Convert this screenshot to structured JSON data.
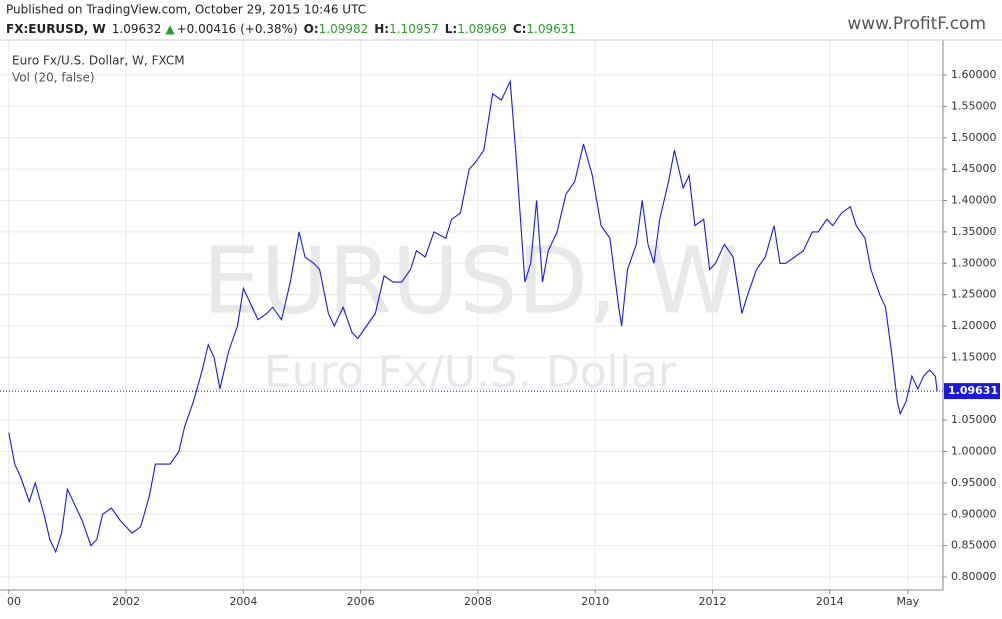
{
  "header": {
    "published": "Published on TradingView.com, October 29, 2015 10:46 UTC",
    "symbol": "FX:EURUSD, W",
    "price": "1.09632",
    "arrow": "▲",
    "change": "+0.00416 (+0.38%)",
    "open_label": "O:",
    "open": "1.09982",
    "high_label": "H:",
    "high": "1.10957",
    "low_label": "L:",
    "low": "1.08969",
    "close_label": "C:",
    "close": "1.09631",
    "logo": "www.ProfitF.com"
  },
  "legend": {
    "study": "Vol (20, false)"
  },
  "watermark": {
    "symbol": "EURUSD, W",
    "description": "Euro Fx/U.S. Dollar"
  },
  "chart_data": {
    "type": "line",
    "series": [
      {
        "name": "Euro Fx/U.S. Dollar, W, FXCM",
        "color": "#1a1ad8",
        "x": [
          2000.0,
          2000.1,
          2000.2,
          2000.35,
          2000.45,
          2000.6,
          2000.7,
          2000.8,
          2000.9,
          2001.0,
          2001.1,
          2001.25,
          2001.4,
          2001.5,
          2001.6,
          2001.75,
          2001.9,
          2002.0,
          2002.1,
          2002.25,
          2002.4,
          2002.5,
          2002.6,
          2002.75,
          2002.9,
          2003.0,
          2003.15,
          2003.3,
          2003.4,
          2003.5,
          2003.6,
          2003.75,
          2003.9,
          2004.0,
          2004.1,
          2004.25,
          2004.4,
          2004.5,
          2004.65,
          2004.8,
          2004.95,
          2005.05,
          2005.2,
          2005.3,
          2005.45,
          2005.55,
          2005.7,
          2005.85,
          2005.95,
          2006.1,
          2006.25,
          2006.4,
          2006.55,
          2006.7,
          2006.85,
          2006.95,
          2007.1,
          2007.25,
          2007.45,
          2007.55,
          2007.7,
          2007.85,
          2007.95,
          2008.1,
          2008.25,
          2008.4,
          2008.55,
          2008.65,
          2008.8,
          2008.9,
          2009.0,
          2009.1,
          2009.2,
          2009.35,
          2009.5,
          2009.65,
          2009.8,
          2009.95,
          2010.1,
          2010.25,
          2010.4,
          2010.45,
          2010.55,
          2010.7,
          2010.8,
          2010.9,
          2011.0,
          2011.1,
          2011.25,
          2011.35,
          2011.5,
          2011.6,
          2011.7,
          2011.85,
          2011.95,
          2012.05,
          2012.2,
          2012.35,
          2012.5,
          2012.6,
          2012.75,
          2012.9,
          2013.05,
          2013.15,
          2013.25,
          2013.4,
          2013.55,
          2013.7,
          2013.8,
          2013.95,
          2014.05,
          2014.2,
          2014.35,
          2014.45,
          2014.6,
          2014.7,
          2014.85,
          2014.95,
          2015.05,
          2015.15,
          2015.2,
          2015.3,
          2015.4,
          2015.5,
          2015.6,
          2015.7,
          2015.8,
          2015.83
        ],
        "values": [
          1.03,
          0.98,
          0.96,
          0.92,
          0.95,
          0.9,
          0.86,
          0.84,
          0.87,
          0.94,
          0.92,
          0.89,
          0.85,
          0.86,
          0.9,
          0.91,
          0.89,
          0.88,
          0.87,
          0.88,
          0.93,
          0.98,
          0.98,
          0.98,
          1.0,
          1.04,
          1.08,
          1.13,
          1.17,
          1.15,
          1.1,
          1.16,
          1.2,
          1.26,
          1.24,
          1.21,
          1.22,
          1.23,
          1.21,
          1.27,
          1.35,
          1.31,
          1.3,
          1.29,
          1.22,
          1.2,
          1.23,
          1.19,
          1.18,
          1.2,
          1.22,
          1.28,
          1.27,
          1.27,
          1.29,
          1.32,
          1.31,
          1.35,
          1.34,
          1.37,
          1.38,
          1.45,
          1.46,
          1.48,
          1.57,
          1.56,
          1.59,
          1.47,
          1.27,
          1.3,
          1.4,
          1.27,
          1.32,
          1.35,
          1.41,
          1.43,
          1.49,
          1.44,
          1.36,
          1.34,
          1.23,
          1.2,
          1.29,
          1.33,
          1.4,
          1.33,
          1.3,
          1.37,
          1.43,
          1.48,
          1.42,
          1.44,
          1.36,
          1.37,
          1.29,
          1.3,
          1.33,
          1.31,
          1.22,
          1.25,
          1.29,
          1.31,
          1.36,
          1.3,
          1.3,
          1.31,
          1.32,
          1.35,
          1.35,
          1.37,
          1.36,
          1.38,
          1.39,
          1.36,
          1.34,
          1.29,
          1.25,
          1.23,
          1.16,
          1.08,
          1.06,
          1.08,
          1.12,
          1.1,
          1.12,
          1.13,
          1.12,
          1.0963
        ]
      }
    ],
    "last_price": 1.09631,
    "xlim": [
      1999.85,
      2015.93
    ],
    "xticks": [
      {
        "value": 2000,
        "label": "00"
      },
      2002,
      2004,
      2006,
      2008,
      2010,
      2012,
      2014,
      {
        "value": 2015.33,
        "label": "May"
      }
    ],
    "ylim": [
      0.7793,
      1.6558
    ],
    "yticks": [
      {
        "value": 0.8,
        "label": "0.80000"
      },
      {
        "value": 0.85,
        "label": "0.85000"
      },
      {
        "value": 0.9,
        "label": "0.90000"
      },
      {
        "value": 0.95,
        "label": "0.95000"
      },
      {
        "value": 1.0,
        "label": "1.00000"
      },
      {
        "value": 1.05,
        "label": "1.05000"
      },
      {
        "value": 1.1,
        "label": "1.10000"
      },
      {
        "value": 1.15,
        "label": "1.15000"
      },
      {
        "value": 1.2,
        "label": "1.20000"
      },
      {
        "value": 1.25,
        "label": "1.25000"
      },
      {
        "value": 1.3,
        "label": "1.30000"
      },
      {
        "value": 1.35,
        "label": "1.35000"
      },
      {
        "value": 1.4,
        "label": "1.40000"
      },
      {
        "value": 1.45,
        "label": "1.45000"
      },
      {
        "value": 1.5,
        "label": "1.50000"
      },
      {
        "value": 1.55,
        "label": "1.55000"
      },
      {
        "value": 1.6,
        "label": "1.60000"
      }
    ],
    "grid": true
  }
}
